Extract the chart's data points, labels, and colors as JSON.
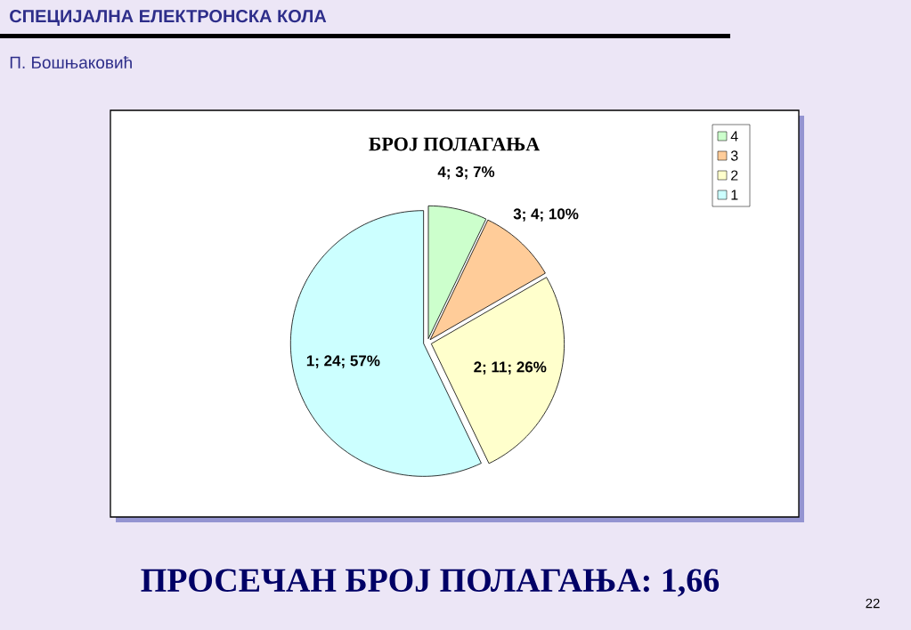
{
  "chart_data": {
    "type": "pie",
    "title": "БРОЈ ПОЛАГАЊА",
    "categories": [
      "4",
      "3",
      "2",
      "1"
    ],
    "values": [
      3,
      4,
      11,
      24
    ],
    "colors": [
      "#ccffcc",
      "#ffcc99",
      "#ffffcc",
      "#ccffff"
    ],
    "value_labels": [
      "4; 3; 7%",
      "3; 4; 10%",
      "2; 11; 26%",
      "1; 24; 57%"
    ],
    "legend": "top right",
    "annotations": [
      "СПЕЦИЈАЛНА ЕЛЕКТРОНСКА КОЛА",
      "П. Бошњаковић",
      "ПРОСЕЧАН БРОЈ ПОЛАГАЊА: 1,66",
      "22"
    ]
  }
}
